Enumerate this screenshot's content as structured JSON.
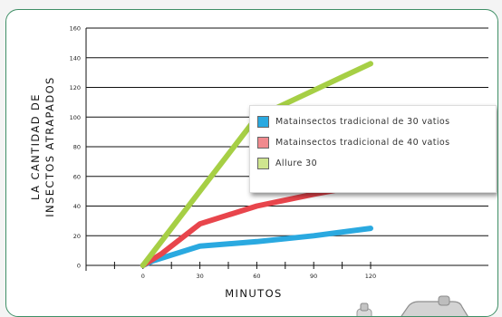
{
  "chart_data": {
    "type": "line",
    "title": "",
    "xlabel": "MINUTOS",
    "ylabel_lines": [
      "LA CANTIDAD DE",
      "INSECTOS ATRAPADOS"
    ],
    "x": [
      0,
      30,
      60,
      90,
      120
    ],
    "x_ticks": [
      0,
      30,
      60,
      90,
      120
    ],
    "xlim": [
      -30,
      120
    ],
    "ylim": [
      0,
      160
    ],
    "y_ticks": [
      0,
      20,
      40,
      60,
      80,
      100,
      120,
      140,
      160
    ],
    "grid": "horizontal",
    "legend_position": "center-right",
    "series": [
      {
        "name": "Matainsectos tradicional de 30 vatios",
        "color": "#2aa9e0",
        "x": [
          0,
          5,
          30,
          60,
          90,
          120
        ],
        "values": [
          0,
          3,
          13,
          16,
          20,
          25
        ]
      },
      {
        "name": "Matainsectos tradicional de 40 vatios",
        "color": "#e8454c",
        "x": [
          0,
          10,
          30,
          60,
          90,
          120
        ],
        "values": [
          0,
          8,
          28,
          40,
          48,
          55
        ]
      },
      {
        "name": "Allure 30",
        "color": "#a6cf45",
        "x": [
          0,
          30,
          60,
          90,
          120
        ],
        "values": [
          0,
          50,
          100,
          118,
          136
        ]
      }
    ]
  }
}
